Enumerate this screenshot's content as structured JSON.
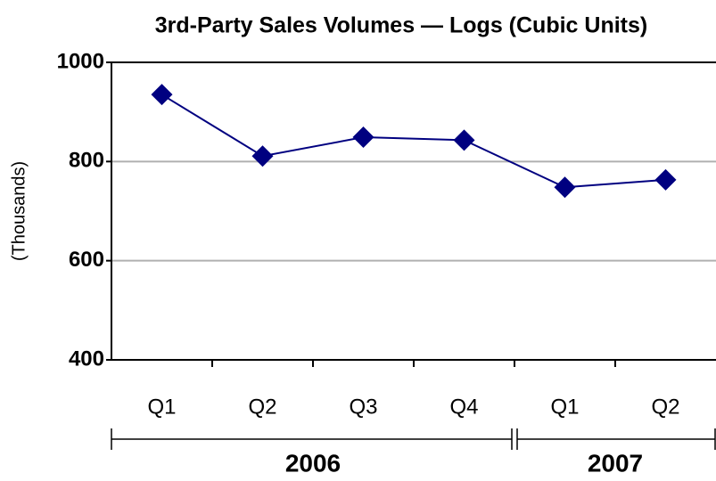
{
  "chart_data": {
    "type": "line",
    "title": "3rd-Party Sales Volumes — Logs (Cubic Units)",
    "y_label": "(Thousands)",
    "groups": [
      {
        "name": "2006",
        "categories": [
          "Q1",
          "Q2",
          "Q3",
          "Q4"
        ]
      },
      {
        "name": "2007",
        "categories": [
          "Q1",
          "Q2"
        ]
      }
    ],
    "series": [
      {
        "name": "Logs",
        "color": "#000080",
        "values": [
          935,
          811,
          849,
          843,
          748,
          763
        ]
      }
    ],
    "ylim": [
      400,
      1000
    ],
    "yticks": [
      400,
      600,
      800,
      1000
    ],
    "grid": true
  }
}
